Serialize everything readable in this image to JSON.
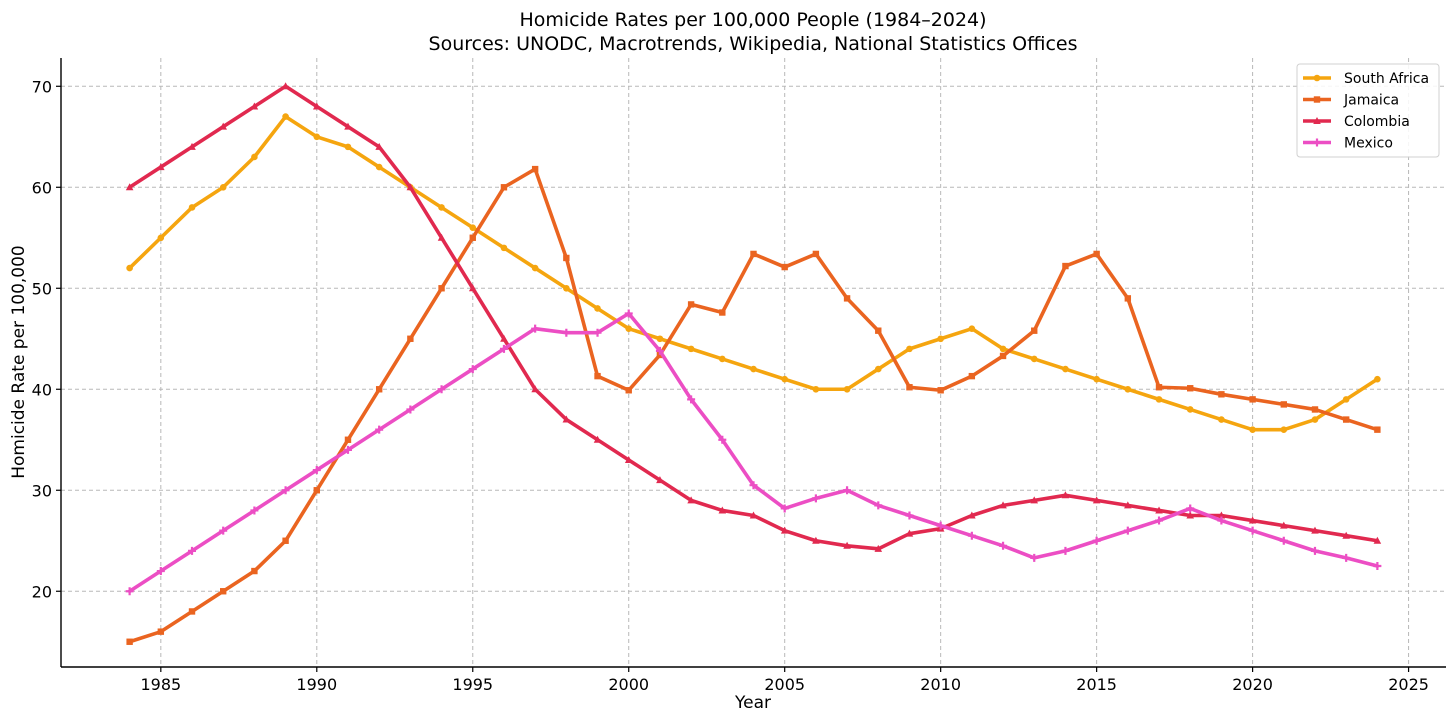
{
  "chart_data": {
    "type": "line",
    "title": "Homicide Rates per 100,000 People (1984–2024)",
    "subtitle": "Sources: UNODC, Macrotrends, Wikipedia, National Statistics Offices",
    "xlabel": "Year",
    "ylabel": "Homicide Rate per 100,000",
    "xlim": [
      1981.8,
      2026.2
    ],
    "ylim": [
      12.5,
      72.8
    ],
    "xticks": [
      1985,
      1990,
      1995,
      2000,
      2005,
      2010,
      2015,
      2020,
      2025
    ],
    "yticks": [
      20,
      30,
      40,
      50,
      60,
      70
    ],
    "xtick_labels": [
      "1985",
      "1990",
      "1995",
      "2000",
      "2005",
      "2010",
      "2015",
      "2020",
      "2025"
    ],
    "ytick_labels": [
      "20",
      "30",
      "40",
      "50",
      "60",
      "70"
    ],
    "grid": true,
    "legend_position": "top-right",
    "x": [
      1984,
      1985,
      1986,
      1987,
      1988,
      1989,
      1990,
      1991,
      1992,
      1993,
      1994,
      1995,
      1996,
      1997,
      1998,
      1999,
      2000,
      2001,
      2002,
      2003,
      2004,
      2005,
      2006,
      2007,
      2008,
      2009,
      2010,
      2011,
      2012,
      2013,
      2014,
      2015,
      2016,
      2017,
      2018,
      2019,
      2020,
      2021,
      2022,
      2023,
      2024
    ],
    "series": [
      {
        "name": "South Africa",
        "color": "#f5a50f",
        "marker": "circle",
        "values": [
          52,
          55,
          58,
          60,
          63,
          67,
          65,
          64,
          62,
          60,
          58,
          56,
          54,
          52,
          50,
          48,
          46,
          45,
          44,
          43,
          42,
          41,
          40,
          40,
          42,
          44,
          45,
          46,
          44,
          43,
          42,
          41,
          40,
          39,
          38,
          37,
          36,
          36,
          37,
          39,
          41
        ]
      },
      {
        "name": "Jamaica",
        "color": "#ea6420",
        "marker": "square",
        "values": [
          15,
          16,
          18,
          20,
          22,
          25,
          30,
          35,
          40,
          45,
          50,
          55,
          60,
          61.8,
          53,
          41.3,
          39.9,
          43.4,
          48.4,
          47.6,
          53.4,
          52.1,
          53.4,
          49,
          45.8,
          40.2,
          39.9,
          41.3,
          43.3,
          45.8,
          52.2,
          53.4,
          49,
          40.2,
          40.1,
          39.5,
          39,
          38.5,
          38,
          37,
          36
        ]
      },
      {
        "name": "Colombia",
        "color": "#e1294f",
        "marker": "triangle",
        "values": [
          60,
          62,
          64,
          66,
          68,
          70,
          68,
          66,
          64,
          60,
          55,
          50,
          45,
          40,
          37,
          35,
          33,
          31,
          29,
          28,
          27.5,
          26,
          25,
          24.5,
          24.2,
          25.7,
          26.2,
          27.5,
          28.5,
          29,
          29.5,
          29,
          28.5,
          28,
          27.5,
          27.5,
          27,
          26.5,
          26,
          25.5,
          25
        ]
      },
      {
        "name": "Mexico",
        "color": "#ec4ec4",
        "marker": "plus",
        "values": [
          20,
          22,
          24,
          26,
          28,
          30,
          32,
          34,
          36,
          38,
          40,
          42,
          44,
          46,
          45.6,
          45.6,
          47.5,
          43.8,
          39,
          35,
          30.5,
          28.2,
          29.2,
          30,
          28.5,
          27.5,
          26.5,
          25.5,
          24.5,
          23.3,
          24,
          25,
          26,
          27,
          28.2,
          27,
          26,
          25,
          24,
          23.3,
          22.5
        ]
      }
    ]
  }
}
